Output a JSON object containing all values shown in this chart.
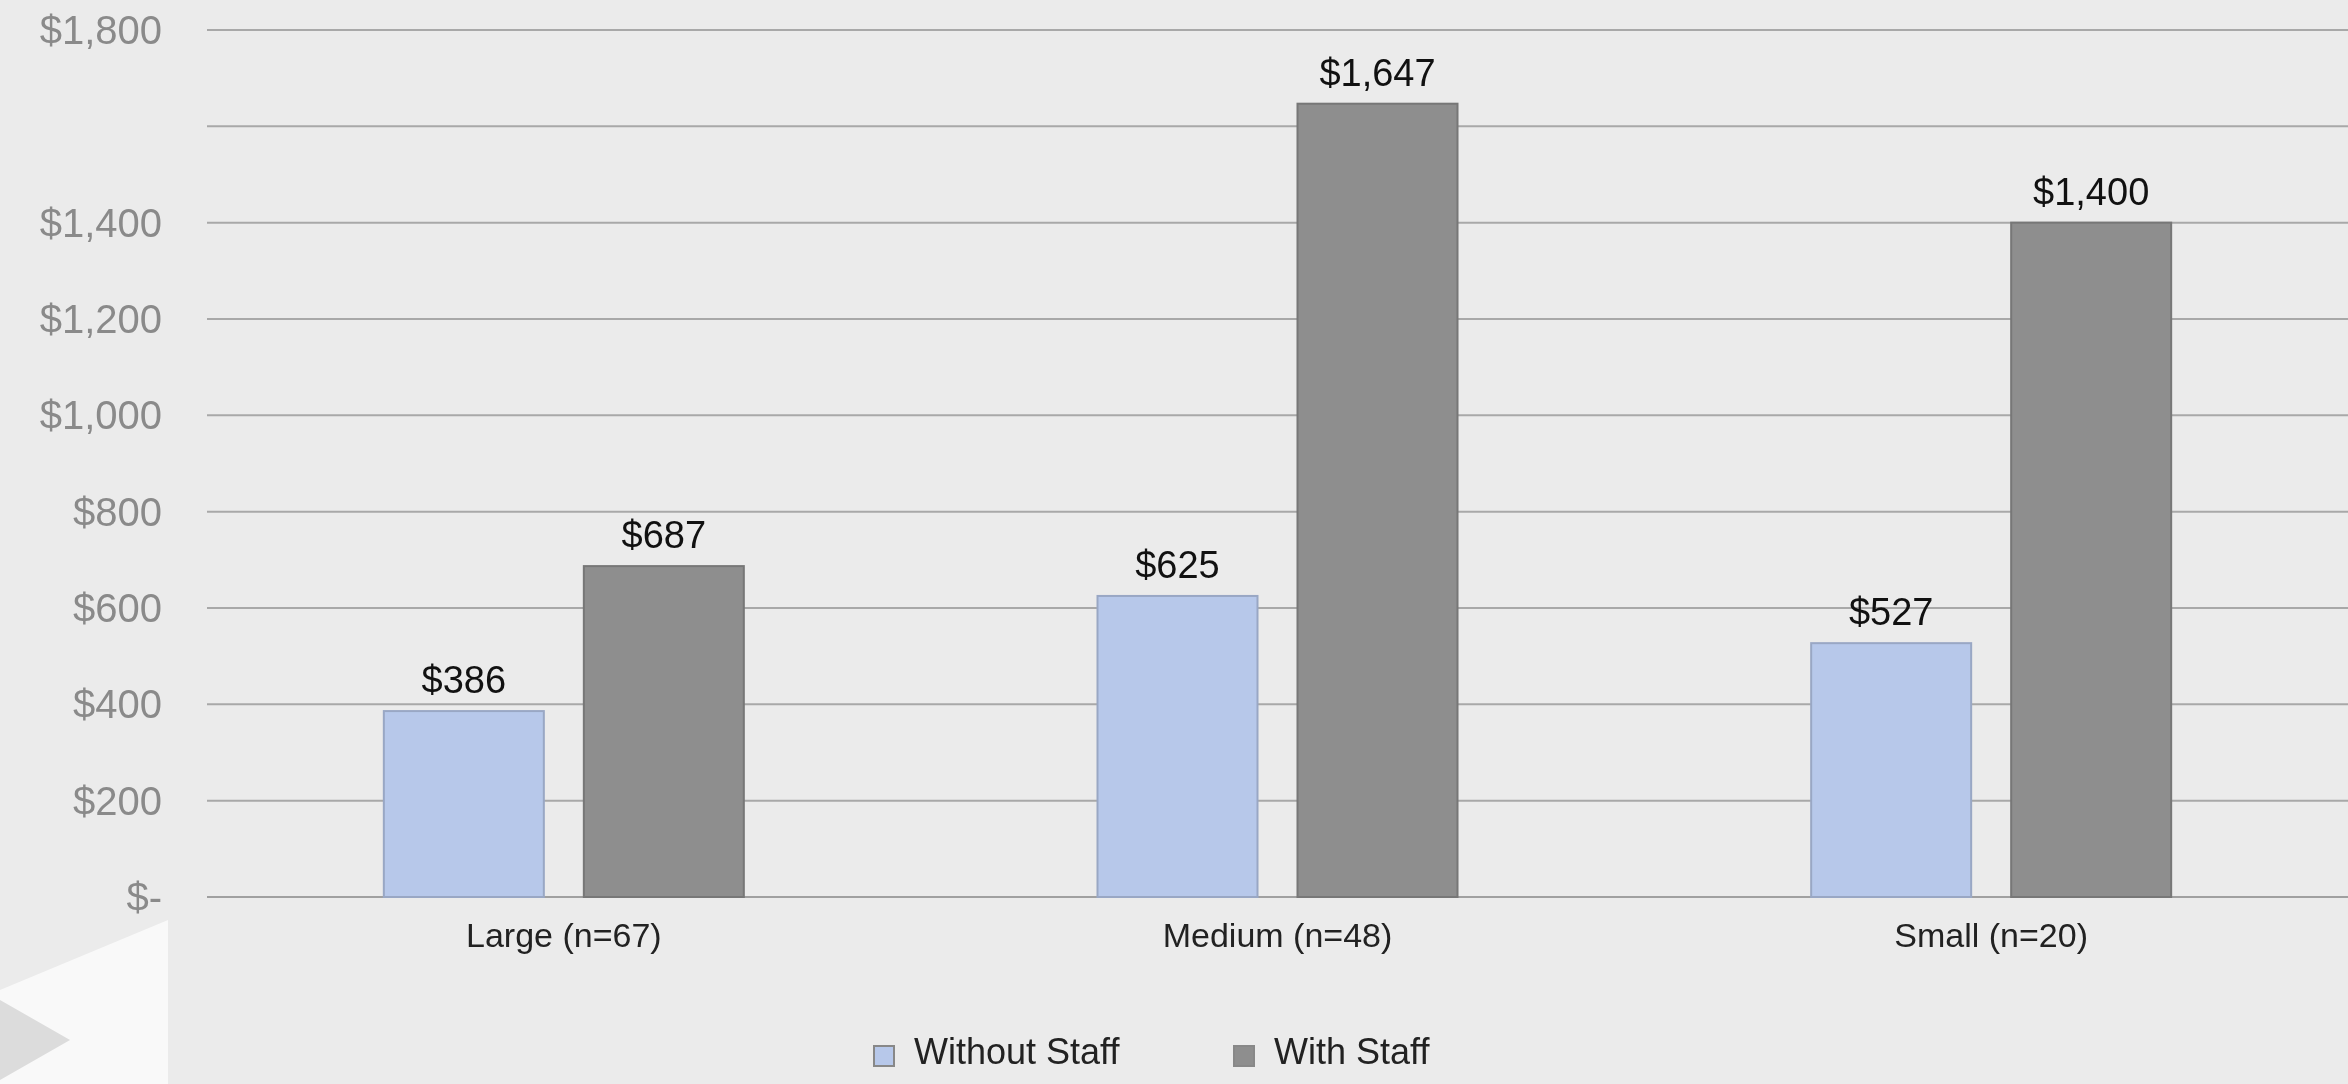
{
  "chart_data": {
    "type": "bar",
    "categories": [
      "Large (n=67)",
      "Medium (n=48)",
      "Small (n=20)"
    ],
    "series": [
      {
        "name": "Without Staff",
        "color": "#b7c8ea",
        "values": [
          386,
          625,
          527
        ]
      },
      {
        "name": "With Staff",
        "color": "#8e8e8e",
        "values": [
          687,
          1647,
          1400
        ]
      }
    ],
    "ylim": [
      0,
      1800
    ],
    "yticks": [
      {
        "value": 0,
        "label": "$-"
      },
      {
        "value": 200,
        "label": "$200"
      },
      {
        "value": 400,
        "label": "$400"
      },
      {
        "value": 600,
        "label": "$600"
      },
      {
        "value": 800,
        "label": "$800"
      },
      {
        "value": 1000,
        "label": "$1,000"
      },
      {
        "value": 1200,
        "label": "$1,200"
      },
      {
        "value": 1400,
        "label": "$1,400"
      },
      {
        "value": 1600,
        "label": null
      },
      {
        "value": 1800,
        "label": "$1,800"
      }
    ],
    "value_labels": [
      [
        "$386",
        "$625",
        "$527"
      ],
      [
        "$687",
        "$1,647",
        "$1,400"
      ]
    ],
    "grid": "y",
    "legend": "bottom"
  }
}
